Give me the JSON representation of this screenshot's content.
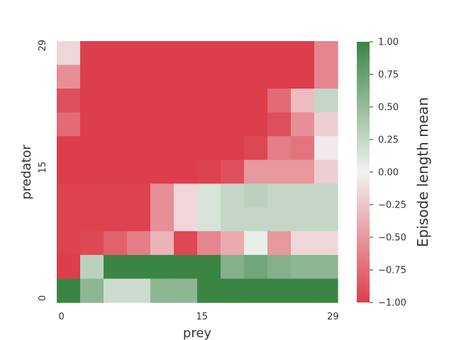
{
  "chart_data": {
    "type": "heatmap",
    "title": "",
    "xlabel": "prey",
    "ylabel": "predator",
    "colorbar_label": "Episode length mean",
    "x_tick_labels": [
      "0",
      "15",
      "29"
    ],
    "y_tick_labels": [
      "0",
      "15",
      "29"
    ],
    "colorbar_ticks": [
      "1.00",
      "0.75",
      "0.50",
      "0.25",
      "0.00",
      "−0.25",
      "−0.50",
      "−0.75",
      "−1.00"
    ],
    "vmin": -1.0,
    "vmax": 1.0,
    "colors": {
      "low": "#dd3e4c",
      "mid": "#f2f2f2",
      "high": "#3b8544"
    },
    "grid": false,
    "rows_top_to_bottom": [
      [
        -0.15,
        -1,
        -1,
        -1,
        -1,
        -1,
        -1,
        -1,
        -1,
        -1,
        -1,
        -0.6
      ],
      [
        -0.55,
        -1,
        -1,
        -1,
        -1,
        -1,
        -1,
        -1,
        -1,
        -1,
        -1,
        -0.6
      ],
      [
        -0.9,
        -1,
        -1,
        -1,
        -1,
        -1,
        -1,
        -1,
        -1,
        -0.75,
        -0.3,
        0.25
      ],
      [
        -0.75,
        -1,
        -1,
        -1,
        -1,
        -1,
        -1,
        -1,
        -1,
        -0.9,
        -0.55,
        -0.2
      ],
      [
        -1,
        -1,
        -1,
        -1,
        -1,
        -1,
        -1,
        -1,
        -0.95,
        -0.65,
        -0.7,
        -0.05
      ],
      [
        -1,
        -1,
        -1,
        -1,
        -1,
        -1,
        -0.98,
        -0.9,
        -0.5,
        -0.5,
        -0.5,
        -0.2
      ],
      [
        -0.98,
        -0.98,
        -0.98,
        -0.98,
        -0.55,
        -0.15,
        0.15,
        0.25,
        0.3,
        0.25,
        0.25,
        0.25
      ],
      [
        -0.98,
        -0.98,
        -0.98,
        -0.98,
        -0.55,
        -0.15,
        0.15,
        0.25,
        0.25,
        0.25,
        0.25,
        0.25
      ],
      [
        -0.98,
        -0.95,
        -0.8,
        -0.65,
        -0.35,
        -0.95,
        -0.6,
        -0.4,
        0.05,
        -0.5,
        -0.15,
        -0.15
      ],
      [
        -1,
        0.3,
        1,
        1,
        1,
        1,
        1,
        0.6,
        0.7,
        0.6,
        0.55,
        0.55
      ],
      [
        1,
        0.55,
        0.2,
        0.2,
        0.55,
        0.55,
        1,
        1,
        1,
        1,
        1,
        1
      ]
    ]
  }
}
